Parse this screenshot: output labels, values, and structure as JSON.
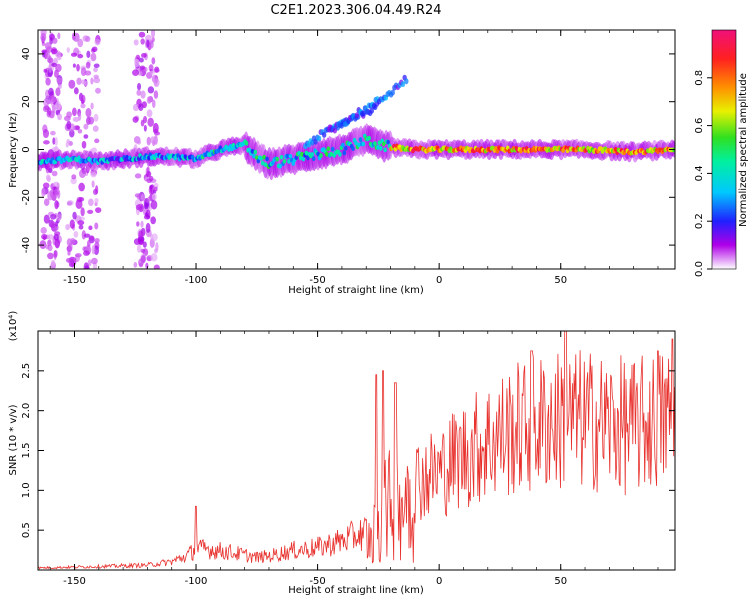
{
  "title": "C2E1.2023.306.04.49.R24",
  "chart_data": [
    {
      "type": "heatmap",
      "xlabel": "Height of straight line (km)",
      "ylabel": "Frequency (Hz)",
      "xlim": [
        -165,
        97
      ],
      "ylim": [
        -50,
        50
      ],
      "xticks": [
        -150,
        -100,
        -50,
        0,
        50
      ],
      "yticks": [
        -40,
        -20,
        0,
        20,
        40
      ],
      "colorbar": {
        "label": "Normalized spectral amplitude",
        "ticks": [
          0.0,
          0.2,
          0.4,
          0.6,
          0.8
        ],
        "range": [
          0,
          1
        ]
      },
      "ridge": {
        "x": [
          -165,
          -150,
          -140,
          -130,
          -120,
          -110,
          -100,
          -90,
          -80,
          -75,
          -70,
          -60,
          -50,
          -40,
          -30,
          -25,
          -20,
          -10,
          0,
          20,
          40,
          60,
          80,
          97
        ],
        "y": [
          -5,
          -4,
          -5,
          -4,
          -3,
          -3,
          -4,
          0,
          2,
          -3,
          -6,
          -4,
          -2,
          0,
          4,
          2,
          1,
          0,
          0,
          0,
          0,
          0,
          -1,
          0
        ]
      },
      "branches": [
        {
          "x": [
            -55,
            -45,
            -35,
            -25
          ],
          "y": [
            2,
            8,
            14,
            18
          ]
        },
        {
          "x": [
            -45,
            -35,
            -28,
            -20,
            -13
          ],
          "y": [
            8,
            14,
            18,
            24,
            30
          ]
        }
      ]
    },
    {
      "type": "line",
      "xlabel": "Height of straight line (km)",
      "ylabel": "SNR (10 * v/v)",
      "multiplier": "(x10⁴)",
      "xlim": [
        -165,
        97
      ],
      "ylim": [
        0,
        3.0
      ],
      "xticks": [
        -150,
        -100,
        -50,
        0,
        50
      ],
      "yticks": [
        0.5,
        1.0,
        1.5,
        2.0,
        2.5
      ],
      "series": [
        {
          "color": "#e8302c",
          "envelope_x": [
            -165,
            -140,
            -120,
            -110,
            -104,
            -100,
            -95,
            -85,
            -75,
            -70,
            -60,
            -50,
            -40,
            -30,
            -25,
            -20,
            -15,
            -12,
            -10,
            -5,
            0,
            5,
            10,
            20,
            30,
            40,
            50,
            60,
            70,
            80,
            90,
            97
          ],
          "envelope_y": [
            0.03,
            0.05,
            0.07,
            0.12,
            0.2,
            0.3,
            0.3,
            0.25,
            0.18,
            0.2,
            0.28,
            0.32,
            0.42,
            0.55,
            0.8,
            1.0,
            1.1,
            1.2,
            1.3,
            1.35,
            1.4,
            1.55,
            1.65,
            1.85,
            2.0,
            2.1,
            2.15,
            2.15,
            2.1,
            2.05,
            2.15,
            2.2
          ],
          "spikes": [
            {
              "x": -100,
              "y": 0.8
            },
            {
              "x": -26,
              "y": 2.45
            },
            {
              "x": -23,
              "y": 2.5
            },
            {
              "x": -18,
              "y": 2.35
            },
            {
              "x": 38,
              "y": 2.75
            },
            {
              "x": 52,
              "y": 3.0
            },
            {
              "x": 90,
              "y": 2.75
            },
            {
              "x": 96,
              "y": 2.9
            }
          ]
        }
      ]
    }
  ]
}
